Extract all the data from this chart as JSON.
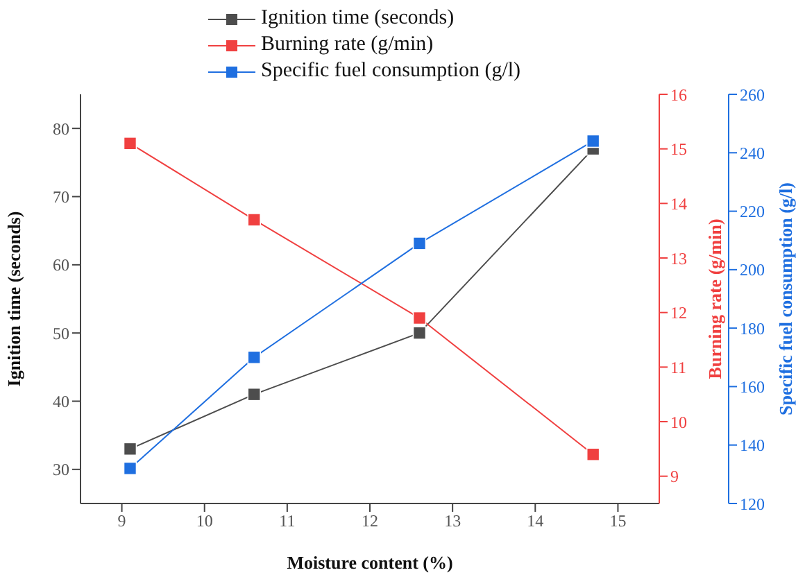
{
  "chart_data": {
    "type": "line",
    "xlabel": "Moisture content (%)",
    "ylabel": "Ignition time (seconds)",
    "y2label": "Burning rate (g/min)",
    "y3label": "Specific fuel consumption (g/l)",
    "x": [
      9.1,
      10.6,
      12.6,
      14.7
    ],
    "series": [
      {
        "name": "Ignition time (seconds)",
        "color": "#4d4d4d",
        "values": [
          33,
          41,
          50,
          77
        ]
      },
      {
        "name": "Burning rate (g/min)",
        "color": "#f04040",
        "axis": "y2",
        "values": [
          15.1,
          13.7,
          11.9,
          9.4
        ]
      },
      {
        "name": "Specific fuel consumption (g/l)",
        "color": "#1f6fe0",
        "axis": "y3",
        "values": [
          132,
          170,
          209,
          244
        ]
      }
    ],
    "xlim": [
      8.5,
      15.5
    ],
    "xticks": [
      9,
      10,
      11,
      12,
      13,
      14,
      15
    ],
    "ylim": [
      25,
      85
    ],
    "yticks": [
      30,
      40,
      50,
      60,
      70,
      80
    ],
    "y2lim": [
      8.5,
      16
    ],
    "y2ticks": [
      9,
      10,
      11,
      12,
      13,
      14,
      15,
      16
    ],
    "y3lim": [
      120,
      260
    ],
    "y3ticks": [
      120,
      140,
      160,
      180,
      200,
      220,
      240,
      260
    ],
    "marker": "square",
    "line_style": "solid",
    "grid": false,
    "legend": "top"
  }
}
